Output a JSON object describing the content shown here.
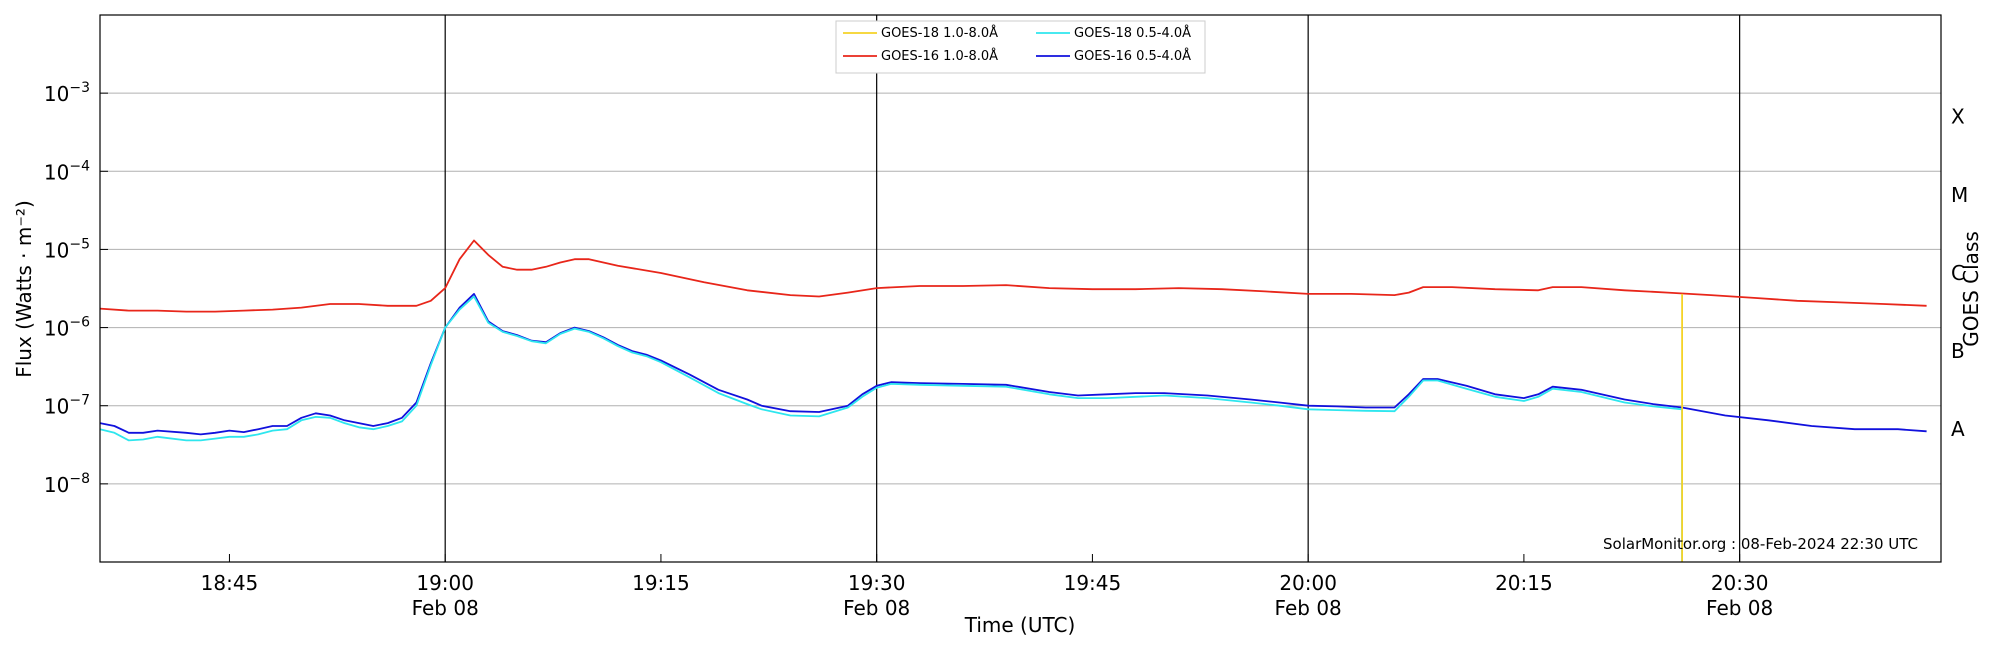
{
  "chart_data": {
    "type": "line",
    "xlabel": "Time (UTC)",
    "ylabel": "Flux (Watts · m⁻²)",
    "right_axis_label": "GOES Class",
    "y_scale": "log",
    "x_range": [
      "18:36",
      "20:44"
    ],
    "ylim": [
      1e-09,
      0.01
    ],
    "grid": "horizontal at each decade",
    "vertical_lines_at": [
      "19:00",
      "19:30",
      "20:00",
      "20:30"
    ],
    "x_ticks": [
      {
        "t": "18:45",
        "label": "18:45",
        "date": ""
      },
      {
        "t": "19:00",
        "label": "19:00",
        "date": "Feb 08"
      },
      {
        "t": "19:15",
        "label": "19:15",
        "date": ""
      },
      {
        "t": "19:30",
        "label": "19:30",
        "date": "Feb 08"
      },
      {
        "t": "19:45",
        "label": "19:45",
        "date": ""
      },
      {
        "t": "20:00",
        "label": "20:00",
        "date": "Feb 08"
      },
      {
        "t": "20:15",
        "label": "20:15",
        "date": ""
      },
      {
        "t": "20:30",
        "label": "20:30",
        "date": "Feb 08"
      }
    ],
    "y_ticks": [
      {
        "value": 1e-08,
        "base": "10",
        "exp": "−8"
      },
      {
        "value": 1e-07,
        "base": "10",
        "exp": "−7"
      },
      {
        "value": 1e-06,
        "base": "10",
        "exp": "−6"
      },
      {
        "value": 1e-05,
        "base": "10",
        "exp": "−5"
      },
      {
        "value": 0.0001,
        "base": "10",
        "exp": "−4"
      },
      {
        "value": 0.001,
        "base": "10",
        "exp": "−3"
      }
    ],
    "goes_classes": [
      {
        "label": "A",
        "value": 5e-08
      },
      {
        "label": "B",
        "value": 5e-07
      },
      {
        "label": "C",
        "value": 5e-06
      },
      {
        "label": "M",
        "value": 5e-05
      },
      {
        "label": "X",
        "value": 0.0005
      }
    ],
    "legend": {
      "placement": "top-center"
    },
    "series": [
      {
        "name": "GOES-16 1.0-8.0Å",
        "color": "#e8261a",
        "points": [
          [
            "18:36",
            1.75e-06
          ],
          [
            "18:38",
            1.65e-06
          ],
          [
            "18:40",
            1.65e-06
          ],
          [
            "18:42",
            1.6e-06
          ],
          [
            "18:44",
            1.6e-06
          ],
          [
            "18:46",
            1.65e-06
          ],
          [
            "18:48",
            1.7e-06
          ],
          [
            "18:50",
            1.8e-06
          ],
          [
            "18:52",
            2e-06
          ],
          [
            "18:54",
            2e-06
          ],
          [
            "18:56",
            1.9e-06
          ],
          [
            "18:58",
            1.9e-06
          ],
          [
            "18:59",
            2.2e-06
          ],
          [
            "19:00",
            3.2e-06
          ],
          [
            "19:01",
            7.5e-06
          ],
          [
            "19:02",
            1.3e-05
          ],
          [
            "19:03",
            8.5e-06
          ],
          [
            "19:04",
            6e-06
          ],
          [
            "19:05",
            5.5e-06
          ],
          [
            "19:06",
            5.5e-06
          ],
          [
            "19:07",
            6e-06
          ],
          [
            "19:08",
            6.8e-06
          ],
          [
            "19:09",
            7.5e-06
          ],
          [
            "19:10",
            7.5e-06
          ],
          [
            "19:12",
            6.2e-06
          ],
          [
            "19:15",
            5e-06
          ],
          [
            "19:18",
            3.8e-06
          ],
          [
            "19:21",
            3e-06
          ],
          [
            "19:24",
            2.6e-06
          ],
          [
            "19:26",
            2.5e-06
          ],
          [
            "19:28",
            2.8e-06
          ],
          [
            "19:30",
            3.2e-06
          ],
          [
            "19:33",
            3.4e-06
          ],
          [
            "19:36",
            3.4e-06
          ],
          [
            "19:39",
            3.5e-06
          ],
          [
            "19:42",
            3.2e-06
          ],
          [
            "19:45",
            3.1e-06
          ],
          [
            "19:48",
            3.1e-06
          ],
          [
            "19:51",
            3.2e-06
          ],
          [
            "19:54",
            3.1e-06
          ],
          [
            "19:57",
            2.9e-06
          ],
          [
            "20:00",
            2.7e-06
          ],
          [
            "20:03",
            2.7e-06
          ],
          [
            "20:06",
            2.6e-06
          ],
          [
            "20:07",
            2.8e-06
          ],
          [
            "20:08",
            3.3e-06
          ],
          [
            "20:10",
            3.3e-06
          ],
          [
            "20:13",
            3.1e-06
          ],
          [
            "20:16",
            3e-06
          ],
          [
            "20:17",
            3.3e-06
          ],
          [
            "20:19",
            3.3e-06
          ],
          [
            "20:22",
            3e-06
          ],
          [
            "20:25",
            2.8e-06
          ],
          [
            "20:28",
            2.6e-06
          ],
          [
            "20:31",
            2.4e-06
          ],
          [
            "20:34",
            2.2e-06
          ],
          [
            "20:37",
            2.1e-06
          ],
          [
            "20:40",
            2e-06
          ],
          [
            "20:43",
            1.9e-06
          ]
        ]
      },
      {
        "name": "GOES-16 0.5-4.0Å",
        "color": "#1111dd",
        "points": [
          [
            "18:36",
            6e-08
          ],
          [
            "18:37",
            5.5e-08
          ],
          [
            "18:38",
            4.5e-08
          ],
          [
            "18:39",
            4.5e-08
          ],
          [
            "18:40",
            4.8e-08
          ],
          [
            "18:42",
            4.5e-08
          ],
          [
            "18:43",
            4.3e-08
          ],
          [
            "18:44",
            4.5e-08
          ],
          [
            "18:45",
            4.8e-08
          ],
          [
            "18:46",
            4.6e-08
          ],
          [
            "18:47",
            5e-08
          ],
          [
            "18:48",
            5.5e-08
          ],
          [
            "18:49",
            5.5e-08
          ],
          [
            "18:50",
            7e-08
          ],
          [
            "18:51",
            8e-08
          ],
          [
            "18:52",
            7.5e-08
          ],
          [
            "18:53",
            6.5e-08
          ],
          [
            "18:54",
            6e-08
          ],
          [
            "18:55",
            5.5e-08
          ],
          [
            "18:56",
            6e-08
          ],
          [
            "18:57",
            7e-08
          ],
          [
            "18:58",
            1.1e-07
          ],
          [
            "18:59",
            3.5e-07
          ],
          [
            "19:00",
            1e-06
          ],
          [
            "19:01",
            1.8e-06
          ],
          [
            "19:02",
            2.7e-06
          ],
          [
            "19:03",
            1.2e-06
          ],
          [
            "19:04",
            9e-07
          ],
          [
            "19:05",
            8e-07
          ],
          [
            "19:06",
            6.8e-07
          ],
          [
            "19:07",
            6.5e-07
          ],
          [
            "19:08",
            8.5e-07
          ],
          [
            "19:09",
            1e-06
          ],
          [
            "19:10",
            9e-07
          ],
          [
            "19:11",
            7.5e-07
          ],
          [
            "19:12",
            6e-07
          ],
          [
            "19:13",
            5e-07
          ],
          [
            "19:14",
            4.5e-07
          ],
          [
            "19:15",
            3.8e-07
          ],
          [
            "19:17",
            2.5e-07
          ],
          [
            "19:19",
            1.6e-07
          ],
          [
            "19:21",
            1.2e-07
          ],
          [
            "19:22",
            1e-07
          ],
          [
            "19:24",
            8.5e-08
          ],
          [
            "19:26",
            8.3e-08
          ],
          [
            "19:28",
            1e-07
          ],
          [
            "19:29",
            1.4e-07
          ],
          [
            "19:30",
            1.8e-07
          ],
          [
            "19:31",
            2e-07
          ],
          [
            "19:33",
            1.95e-07
          ],
          [
            "19:36",
            1.9e-07
          ],
          [
            "19:39",
            1.85e-07
          ],
          [
            "19:42",
            1.5e-07
          ],
          [
            "19:44",
            1.35e-07
          ],
          [
            "19:46",
            1.4e-07
          ],
          [
            "19:48",
            1.45e-07
          ],
          [
            "19:50",
            1.45e-07
          ],
          [
            "19:53",
            1.35e-07
          ],
          [
            "19:56",
            1.2e-07
          ],
          [
            "19:58",
            1.1e-07
          ],
          [
            "20:00",
            1e-07
          ],
          [
            "20:02",
            9.8e-08
          ],
          [
            "20:04",
            9.5e-08
          ],
          [
            "20:06",
            9.5e-08
          ],
          [
            "20:07",
            1.4e-07
          ],
          [
            "20:08",
            2.2e-07
          ],
          [
            "20:09",
            2.2e-07
          ],
          [
            "20:11",
            1.8e-07
          ],
          [
            "20:13",
            1.4e-07
          ],
          [
            "20:15",
            1.25e-07
          ],
          [
            "20:16",
            1.4e-07
          ],
          [
            "20:17",
            1.75e-07
          ],
          [
            "20:19",
            1.6e-07
          ],
          [
            "20:22",
            1.2e-07
          ],
          [
            "20:24",
            1.05e-07
          ],
          [
            "20:26",
            9.5e-08
          ],
          [
            "20:29",
            7.5e-08
          ],
          [
            "20:32",
            6.5e-08
          ],
          [
            "20:35",
            5.5e-08
          ],
          [
            "20:38",
            5e-08
          ],
          [
            "20:41",
            5e-08
          ],
          [
            "20:43",
            4.7e-08
          ]
        ]
      },
      {
        "name": "GOES-18 0.5-4.0Å",
        "color": "#2ee6ee",
        "points": [
          [
            "18:36",
            5e-08
          ],
          [
            "18:37",
            4.5e-08
          ],
          [
            "18:38",
            3.6e-08
          ],
          [
            "18:39",
            3.7e-08
          ],
          [
            "18:40",
            4e-08
          ],
          [
            "18:42",
            3.6e-08
          ],
          [
            "18:43",
            3.6e-08
          ],
          [
            "18:44",
            3.8e-08
          ],
          [
            "18:45",
            4e-08
          ],
          [
            "18:46",
            4e-08
          ],
          [
            "18:47",
            4.3e-08
          ],
          [
            "18:48",
            4.8e-08
          ],
          [
            "18:49",
            5e-08
          ],
          [
            "18:50",
            6.5e-08
          ],
          [
            "18:51",
            7.2e-08
          ],
          [
            "18:52",
            7e-08
          ],
          [
            "18:53",
            6e-08
          ],
          [
            "18:54",
            5.3e-08
          ],
          [
            "18:55",
            5e-08
          ],
          [
            "18:56",
            5.5e-08
          ],
          [
            "18:57",
            6.3e-08
          ],
          [
            "18:58",
            1e-07
          ],
          [
            "18:59",
            3.3e-07
          ],
          [
            "19:00",
            1e-06
          ],
          [
            "19:01",
            1.7e-06
          ],
          [
            "19:02",
            2.5e-06
          ],
          [
            "19:03",
            1.15e-06
          ],
          [
            "19:04",
            8.8e-07
          ],
          [
            "19:05",
            7.8e-07
          ],
          [
            "19:06",
            6.7e-07
          ],
          [
            "19:07",
            6.3e-07
          ],
          [
            "19:08",
            8.3e-07
          ],
          [
            "19:09",
            9.7e-07
          ],
          [
            "19:10",
            8.8e-07
          ],
          [
            "19:11",
            7.3e-07
          ],
          [
            "19:12",
            5.8e-07
          ],
          [
            "19:13",
            4.8e-07
          ],
          [
            "19:14",
            4.3e-07
          ],
          [
            "19:15",
            3.6e-07
          ],
          [
            "19:17",
            2.3e-07
          ],
          [
            "19:19",
            1.45e-07
          ],
          [
            "19:21",
            1.05e-07
          ],
          [
            "19:22",
            9e-08
          ],
          [
            "19:24",
            7.5e-08
          ],
          [
            "19:26",
            7.3e-08
          ],
          [
            "19:28",
            9.5e-08
          ],
          [
            "19:29",
            1.3e-07
          ],
          [
            "19:30",
            1.7e-07
          ],
          [
            "19:31",
            1.9e-07
          ],
          [
            "19:33",
            1.85e-07
          ],
          [
            "19:36",
            1.8e-07
          ],
          [
            "19:39",
            1.75e-07
          ],
          [
            "19:42",
            1.4e-07
          ],
          [
            "19:44",
            1.25e-07
          ],
          [
            "19:46",
            1.25e-07
          ],
          [
            "19:48",
            1.3e-07
          ],
          [
            "19:50",
            1.35e-07
          ],
          [
            "19:53",
            1.25e-07
          ],
          [
            "19:56",
            1.1e-07
          ],
          [
            "19:58",
            1e-07
          ],
          [
            "20:00",
            9e-08
          ],
          [
            "20:02",
            8.8e-08
          ],
          [
            "20:04",
            8.6e-08
          ],
          [
            "20:06",
            8.5e-08
          ],
          [
            "20:07",
            1.3e-07
          ],
          [
            "20:08",
            2.1e-07
          ],
          [
            "20:09",
            2.1e-07
          ],
          [
            "20:11",
            1.65e-07
          ],
          [
            "20:13",
            1.3e-07
          ],
          [
            "20:15",
            1.15e-07
          ],
          [
            "20:16",
            1.3e-07
          ],
          [
            "20:17",
            1.65e-07
          ],
          [
            "20:19",
            1.5e-07
          ],
          [
            "20:22",
            1.1e-07
          ],
          [
            "20:24",
            9.8e-08
          ],
          [
            "20:26",
            9e-08
          ],
          [
            "20:26",
            1e-09
          ]
        ]
      },
      {
        "name": "GOES-18 1.0-8.0Å",
        "color": "#f5d327",
        "points": [
          [
            "20:26",
            2.7e-06
          ],
          [
            "20:26",
            1e-09
          ]
        ]
      }
    ]
  },
  "credit": "SolarMonitor.org : 08-Feb-2024 22:30 UTC"
}
